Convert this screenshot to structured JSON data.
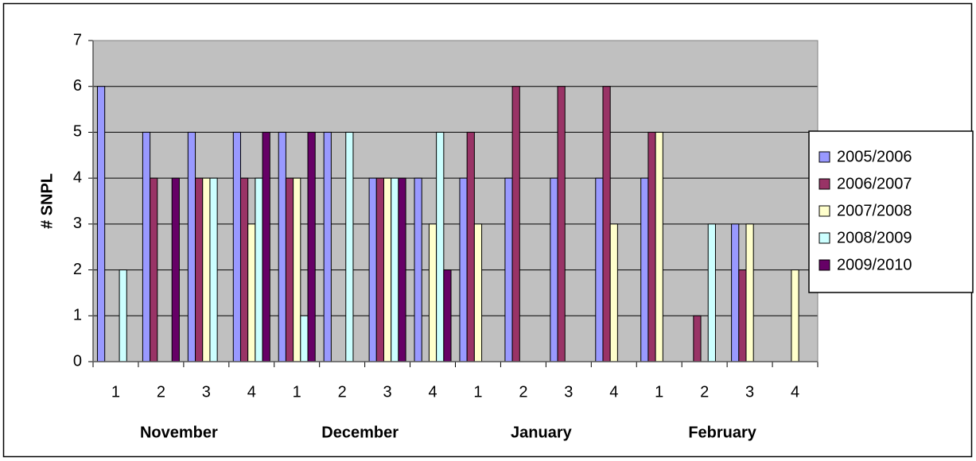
{
  "chart_data": {
    "type": "bar",
    "ylabel": "# SNPL",
    "categories": [
      "1",
      "2",
      "3",
      "4",
      "1",
      "2",
      "3",
      "4",
      "1",
      "2",
      "3",
      "4",
      "1",
      "2",
      "3",
      "4"
    ],
    "groups": [
      "November",
      "December",
      "January",
      "February"
    ],
    "series": [
      {
        "name": "2005/2006",
        "color": "#9999ff",
        "values": [
          6,
          5,
          5,
          5,
          5,
          5,
          4,
          4,
          4,
          4,
          4,
          4,
          4,
          0,
          3,
          0
        ]
      },
      {
        "name": "2006/2007",
        "color": "#993366",
        "values": [
          0,
          4,
          4,
          4,
          4,
          0,
          4,
          0,
          5,
          6,
          6,
          6,
          5,
          1,
          2,
          0
        ]
      },
      {
        "name": "2007/2008",
        "color": "#ffffcc",
        "values": [
          0,
          0,
          4,
          3,
          4,
          0,
          4,
          3,
          3,
          0,
          0,
          3,
          5,
          0,
          3,
          2
        ]
      },
      {
        "name": "2008/2009",
        "color": "#ccffff",
        "values": [
          2,
          0,
          4,
          4,
          1,
          5,
          4,
          5,
          0,
          0,
          0,
          0,
          0,
          3,
          0,
          0
        ]
      },
      {
        "name": "2009/2010",
        "color": "#660066",
        "values": [
          0,
          4,
          0,
          5,
          5,
          0,
          4,
          2,
          0,
          0,
          0,
          0,
          0,
          0,
          0,
          0
        ]
      }
    ],
    "ylim": [
      0,
      7
    ],
    "yticks": [
      0,
      1,
      2,
      3,
      4,
      5,
      6,
      7
    ],
    "grid": true,
    "legend": "right",
    "plot_background": "#c0c0c0"
  }
}
